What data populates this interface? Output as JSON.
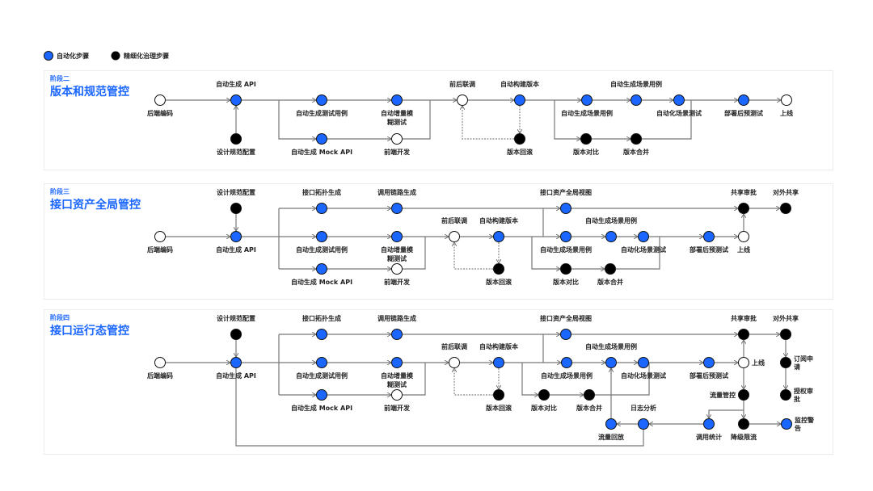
{
  "legend": [
    {
      "label": "自动化步骤",
      "kind": "auto"
    },
    {
      "label": "精细化治理步骤",
      "kind": "gov"
    }
  ],
  "colors": {
    "auto": "#1a66ff",
    "gov": "#000000",
    "manual": "#ffffff",
    "accent": "#1a66ff",
    "line": "#777777"
  },
  "stages": [
    {
      "tag": "阶段二",
      "title": "版本和规范管控",
      "nodes": [
        {
          "id": "backend",
          "label": [
            "后端编码"
          ],
          "kind": "manual"
        },
        {
          "id": "genapi",
          "label": [
            "自动生成 API"
          ],
          "kind": "auto"
        },
        {
          "id": "spec",
          "label": [
            "设计规范配置"
          ],
          "kind": "gov"
        },
        {
          "id": "gentest",
          "label": [
            "自动生成测试用例"
          ],
          "kind": "auto"
        },
        {
          "id": "fuzz",
          "label": [
            "自动增量模",
            "糊测试"
          ],
          "kind": "auto"
        },
        {
          "id": "mock",
          "label": [
            "自动生成 Mock API"
          ],
          "kind": "auto"
        },
        {
          "id": "frontend",
          "label": [
            "前端开发"
          ],
          "kind": "manual"
        },
        {
          "id": "joint",
          "label": [
            "前后联调"
          ],
          "kind": "manual"
        },
        {
          "id": "build",
          "label": [
            "自动构建版本"
          ],
          "kind": "auto"
        },
        {
          "id": "rollback",
          "label": [
            "版本回滚"
          ],
          "kind": "gov"
        },
        {
          "id": "scene1",
          "label": [
            "自动生成场景用例"
          ],
          "kind": "auto"
        },
        {
          "id": "scene2",
          "label": [
            "自动生成场景用例"
          ],
          "kind": "auto"
        },
        {
          "id": "scenetest",
          "label": [
            "自动化场景测试"
          ],
          "kind": "auto"
        },
        {
          "id": "diff",
          "label": [
            "版本对比"
          ],
          "kind": "gov"
        },
        {
          "id": "merge",
          "label": [
            "版本合并"
          ],
          "kind": "gov"
        },
        {
          "id": "pretest",
          "label": [
            "部署后预测试"
          ],
          "kind": "auto"
        },
        {
          "id": "online",
          "label": [
            "上线"
          ],
          "kind": "manual"
        }
      ]
    },
    {
      "tag": "阶段三",
      "title": "接口资产全局管控",
      "nodes": [
        {
          "id": "backend",
          "label": [
            "后端编码"
          ],
          "kind": "manual"
        },
        {
          "id": "spec",
          "label": [
            "设计规范配置"
          ],
          "kind": "gov"
        },
        {
          "id": "genapi",
          "label": [
            "自动生成 API"
          ],
          "kind": "auto"
        },
        {
          "id": "topo",
          "label": [
            "接口拓扑生成"
          ],
          "kind": "auto"
        },
        {
          "id": "gentest",
          "label": [
            "自动生成测试用例"
          ],
          "kind": "auto"
        },
        {
          "id": "mock",
          "label": [
            "自动生成 Mock API"
          ],
          "kind": "auto"
        },
        {
          "id": "chain",
          "label": [
            "调用链路生成"
          ],
          "kind": "auto"
        },
        {
          "id": "fuzz",
          "label": [
            "自动增量模",
            "糊测试"
          ],
          "kind": "auto"
        },
        {
          "id": "frontend",
          "label": [
            "前端开发"
          ],
          "kind": "manual"
        },
        {
          "id": "joint",
          "label": [
            "前后联调"
          ],
          "kind": "manual"
        },
        {
          "id": "build",
          "label": [
            "自动构建版本"
          ],
          "kind": "auto"
        },
        {
          "id": "rollback",
          "label": [
            "版本回滚"
          ],
          "kind": "gov"
        },
        {
          "id": "assetview",
          "label": [
            "接口资产全局视图"
          ],
          "kind": "auto"
        },
        {
          "id": "scene1",
          "label": [
            "自动生成场景用例"
          ],
          "kind": "auto"
        },
        {
          "id": "scene2",
          "label": [
            "自动生成场景用例"
          ],
          "kind": "auto"
        },
        {
          "id": "scenetest",
          "label": [
            "自动化场景测试"
          ],
          "kind": "auto"
        },
        {
          "id": "diff",
          "label": [
            "版本对比"
          ],
          "kind": "gov"
        },
        {
          "id": "merge",
          "label": [
            "版本合并"
          ],
          "kind": "gov"
        },
        {
          "id": "pretest",
          "label": [
            "部署后预测试"
          ],
          "kind": "auto"
        },
        {
          "id": "online",
          "label": [
            "上线"
          ],
          "kind": "manual"
        },
        {
          "id": "approve",
          "label": [
            "共享审批"
          ],
          "kind": "gov"
        },
        {
          "id": "share",
          "label": [
            "对外共享"
          ],
          "kind": "gov"
        }
      ]
    },
    {
      "tag": "阶段四",
      "title": "接口运行态管控",
      "nodes": [
        {
          "id": "backend",
          "label": [
            "后端编码"
          ],
          "kind": "manual"
        },
        {
          "id": "spec",
          "label": [
            "设计规范配置"
          ],
          "kind": "gov"
        },
        {
          "id": "genapi",
          "label": [
            "自动生成 API"
          ],
          "kind": "auto"
        },
        {
          "id": "topo",
          "label": [
            "接口拓扑生成"
          ],
          "kind": "auto"
        },
        {
          "id": "gentest",
          "label": [
            "自动生成测试用例"
          ],
          "kind": "auto"
        },
        {
          "id": "mock",
          "label": [
            "自动生成 Mock API"
          ],
          "kind": "auto"
        },
        {
          "id": "chain",
          "label": [
            "调用链路生成"
          ],
          "kind": "auto"
        },
        {
          "id": "fuzz",
          "label": [
            "自动增量模",
            "糊测试"
          ],
          "kind": "auto"
        },
        {
          "id": "frontend",
          "label": [
            "前端开发"
          ],
          "kind": "manual"
        },
        {
          "id": "joint",
          "label": [
            "前后联调"
          ],
          "kind": "manual"
        },
        {
          "id": "build",
          "label": [
            "自动构建版本"
          ],
          "kind": "auto"
        },
        {
          "id": "rollback",
          "label": [
            "版本回滚"
          ],
          "kind": "gov"
        },
        {
          "id": "assetview",
          "label": [
            "接口资产全局视图"
          ],
          "kind": "auto"
        },
        {
          "id": "scene1",
          "label": [
            "自动生成场景用例"
          ],
          "kind": "auto"
        },
        {
          "id": "scene2",
          "label": [
            "自动生成场景用例"
          ],
          "kind": "auto"
        },
        {
          "id": "scenetest",
          "label": [
            "自动化场景测试"
          ],
          "kind": "auto"
        },
        {
          "id": "diff",
          "label": [
            "版本对比"
          ],
          "kind": "gov"
        },
        {
          "id": "merge",
          "label": [
            "版本合并"
          ],
          "kind": "gov"
        },
        {
          "id": "pretest",
          "label": [
            "部署后预测试"
          ],
          "kind": "auto"
        },
        {
          "id": "online",
          "label": [
            "上线"
          ],
          "kind": "manual"
        },
        {
          "id": "approve",
          "label": [
            "共享审批"
          ],
          "kind": "gov"
        },
        {
          "id": "share",
          "label": [
            "对外共享"
          ],
          "kind": "gov"
        },
        {
          "id": "subscribe",
          "label": [
            "订阅申",
            "请"
          ],
          "kind": "gov"
        },
        {
          "id": "authorize",
          "label": [
            "授权审",
            "批"
          ],
          "kind": "gov"
        },
        {
          "id": "traffic",
          "label": [
            "流量管控"
          ],
          "kind": "gov"
        },
        {
          "id": "stats",
          "label": [
            "调用统计"
          ],
          "kind": "auto"
        },
        {
          "id": "degrade",
          "label": [
            "降级限流"
          ],
          "kind": "gov"
        },
        {
          "id": "alert",
          "label": [
            "监控警",
            "告"
          ],
          "kind": "auto"
        },
        {
          "id": "log",
          "label": [
            "日志分析"
          ],
          "kind": "auto"
        },
        {
          "id": "replay",
          "label": [
            "流量回放"
          ],
          "kind": "auto"
        }
      ]
    }
  ]
}
